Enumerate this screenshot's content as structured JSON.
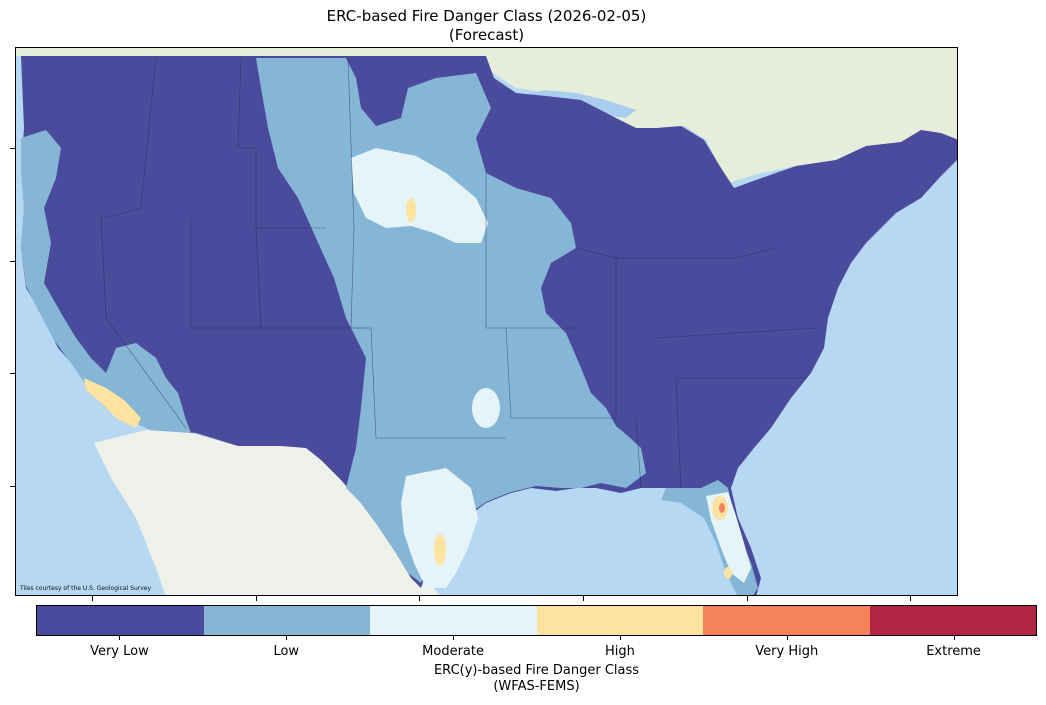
{
  "title_line1": "ERC-based Fire Danger Class (2026-02-05)",
  "title_line2": "(Forecast)",
  "attribution": "Tiles courtesy of the U.S. Geological Survey",
  "legend": {
    "title_line1": "ERC(y)-based Fire Danger Class",
    "title_line2": "(WFAS-FEMS)",
    "classes": [
      {
        "label": "Very Low",
        "color": "#4b4b9e"
      },
      {
        "label": "Low",
        "color": "#86b6d6"
      },
      {
        "label": "Moderate",
        "color": "#e5f4f8"
      },
      {
        "label": "High",
        "color": "#fde39f"
      },
      {
        "label": "Very High",
        "color": "#f4835c"
      },
      {
        "label": "Extreme",
        "color": "#b22443"
      }
    ]
  },
  "colors": {
    "ocean": "#b7d8f2",
    "land_canada": "#e6eedb",
    "land_mexico": "#eef0ea",
    "lakes": "#a9cdee"
  }
}
